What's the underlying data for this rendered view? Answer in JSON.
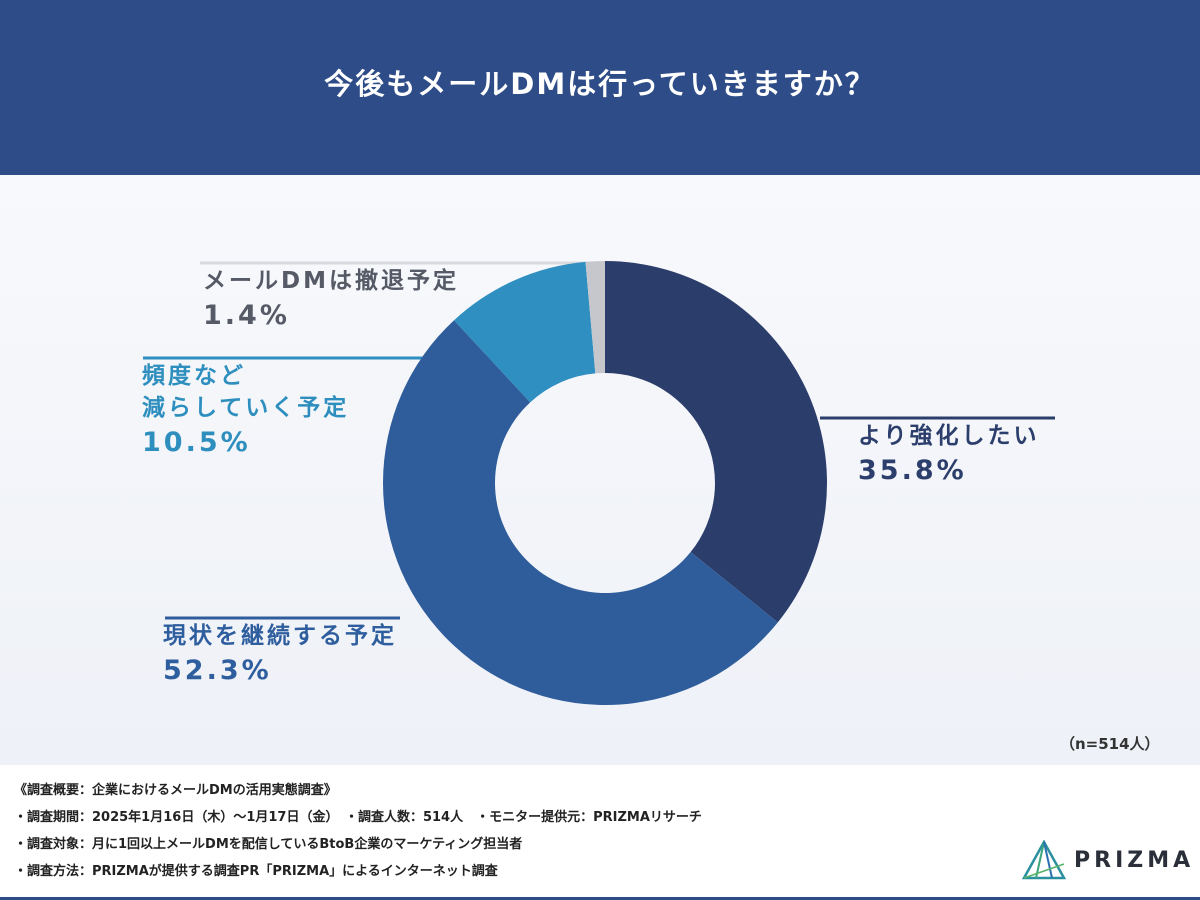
{
  "header": {
    "title": "今後もメールDMは行っていきますか？"
  },
  "chart_data": {
    "type": "pie",
    "donut": true,
    "categories": [
      "より強化したい",
      "現状を継続する予定",
      "頻度など減らしていく予定",
      "メールDMは撤退予定"
    ],
    "values": [
      35.8,
      52.3,
      10.5,
      1.4
    ],
    "value_labels": [
      "35.8%",
      "52.3%",
      "10.5%",
      "1.4%"
    ],
    "colors": [
      "#2b3d6b",
      "#2f5d9b",
      "#2e8fc0",
      "#c5c7cc"
    ],
    "label_lines": [
      "より強化したい",
      "現状を継続する予定",
      "頻度など",
      "減らしていく予定",
      "メールDMは撤退予定"
    ],
    "title": ""
  },
  "sample_note": "（n=514人）",
  "footer": {
    "lines": [
      "《調査概要：企業におけるメールDMの活用実態調査》",
      "・調査期間：2025年1月16日（木）〜1月17日（金）　・調査人数：514人　・モニター提供元：PRIZMAリサーチ",
      "・調査対象：月に1回以上メールDMを配信しているBtoB企業のマーケティング担当者",
      "・調査方法：PRIZMAが提供する調査PR「PRIZMA」によるインターネット調査"
    ]
  },
  "logo": {
    "text": "PRIZMA",
    "icon": "prism-logo-icon"
  }
}
